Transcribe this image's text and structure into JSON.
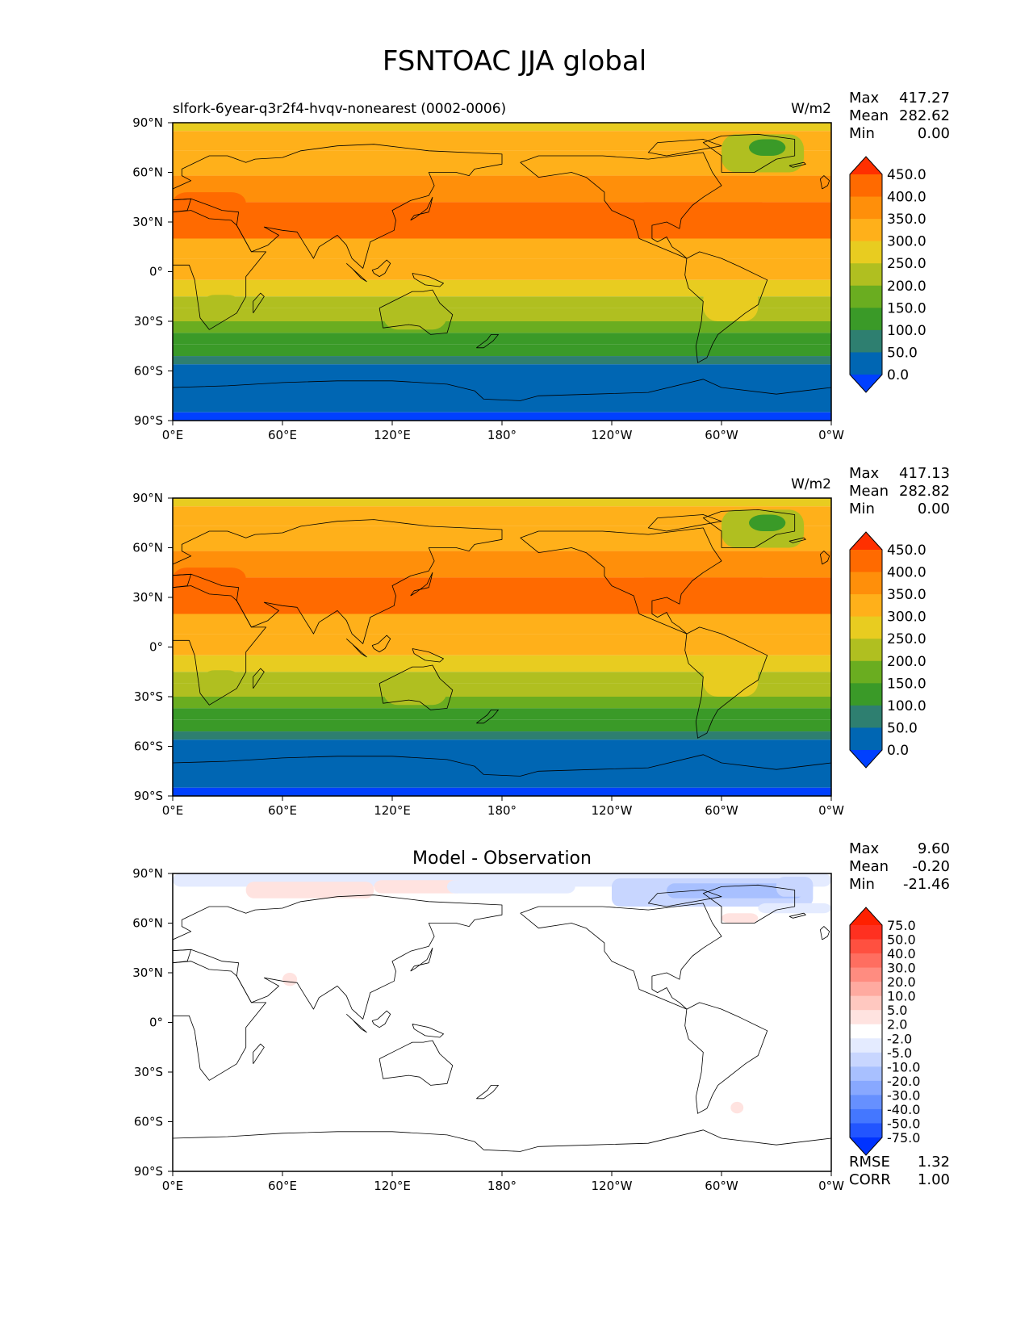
{
  "title": "FSNTOAC JJA global",
  "chart_data": [
    {
      "type": "heatmap",
      "name": "test",
      "title": "slfork-6year-q3r2f4-hvqv-nonearest (0002-0006)",
      "units": "W/m2",
      "stats": {
        "max_label": "Max",
        "max": "417.27",
        "mean_label": "Mean",
        "mean": "282.62",
        "min_label": "Min",
        "min": "0.00"
      },
      "xlim": [
        0,
        360
      ],
      "ylim": [
        -90,
        90
      ],
      "xticks": [
        "0°E",
        "60°E",
        "120°E",
        "180°",
        "120°W",
        "60°W",
        "0°W"
      ],
      "yticks": [
        "90°N",
        "60°N",
        "30°N",
        "0°",
        "30°S",
        "60°S",
        "90°S"
      ],
      "colorbar": {
        "levels": [
          "0.0",
          "50.0",
          "100.0",
          "150.0",
          "200.0",
          "250.0",
          "300.0",
          "350.0",
          "400.0",
          "450.0"
        ],
        "colors": [
          "#0040ff",
          "#0066b3",
          "#2e7f70",
          "#3a9a28",
          "#6aad20",
          "#b0bf20",
          "#e8cc20",
          "#ffb01a",
          "#ff8f0a",
          "#ff6a00",
          "#ff3000"
        ]
      }
    },
    {
      "type": "heatmap",
      "name": "reference",
      "title": "",
      "units": "W/m2",
      "stats": {
        "max_label": "Max",
        "max": "417.13",
        "mean_label": "Mean",
        "mean": "282.82",
        "min_label": "Min",
        "min": "0.00"
      },
      "xlim": [
        0,
        360
      ],
      "ylim": [
        -90,
        90
      ],
      "xticks": [
        "0°E",
        "60°E",
        "120°E",
        "180°",
        "120°W",
        "60°W",
        "0°W"
      ],
      "yticks": [
        "90°N",
        "60°N",
        "30°N",
        "0°",
        "30°S",
        "60°S",
        "90°S"
      ],
      "colorbar": {
        "levels": [
          "0.0",
          "50.0",
          "100.0",
          "150.0",
          "200.0",
          "250.0",
          "300.0",
          "350.0",
          "400.0",
          "450.0"
        ],
        "colors": [
          "#0040ff",
          "#0066b3",
          "#2e7f70",
          "#3a9a28",
          "#6aad20",
          "#b0bf20",
          "#e8cc20",
          "#ffb01a",
          "#ff8f0a",
          "#ff6a00",
          "#ff3000"
        ]
      }
    },
    {
      "type": "heatmap",
      "name": "difference",
      "title": "Model - Observation",
      "units": "",
      "stats": {
        "max_label": "Max",
        "max": "9.60",
        "mean_label": "Mean",
        "mean": "-0.20",
        "min_label": "Min",
        "min": "-21.46"
      },
      "metrics": {
        "rmse_label": "RMSE",
        "rmse": "1.32",
        "corr_label": "CORR",
        "corr": "1.00"
      },
      "xlim": [
        0,
        360
      ],
      "ylim": [
        -90,
        90
      ],
      "xticks": [
        "0°E",
        "60°E",
        "120°E",
        "180°",
        "120°W",
        "60°W",
        "0°W"
      ],
      "yticks": [
        "90°N",
        "60°N",
        "30°N",
        "0°",
        "30°S",
        "60°S",
        "90°S"
      ],
      "colorbar": {
        "levels": [
          "-75.0",
          "-50.0",
          "-40.0",
          "-30.0",
          "-20.0",
          "-10.0",
          "-5.0",
          "-2.0",
          "2.0",
          "5.0",
          "10.0",
          "20.0",
          "30.0",
          "40.0",
          "50.0",
          "75.0"
        ],
        "colors": [
          "#0033ff",
          "#2255ff",
          "#4477ff",
          "#6690ff",
          "#88a8ff",
          "#a8c0ff",
          "#c8d6ff",
          "#e4ebff",
          "#ffffff",
          "#ffe3e0",
          "#ffc8c0",
          "#ffaaa0",
          "#ff8c80",
          "#ff6e60",
          "#ff5040",
          "#ff3020",
          "#ff2000"
        ]
      }
    }
  ]
}
